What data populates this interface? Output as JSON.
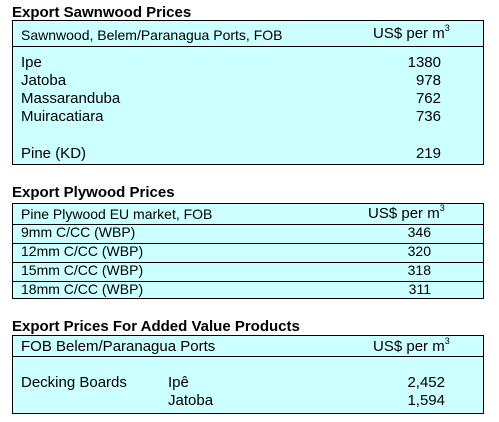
{
  "sawnwood": {
    "title": "Export Sawnwood Prices",
    "header_label": "Sawnwood, Belem/Paranagua Ports, FOB",
    "header_unit": "US$ per m",
    "header_unit_sup": "3",
    "rows": [
      {
        "name": "Ipe",
        "value": "1380"
      },
      {
        "name": "Jatoba",
        "value": "978"
      },
      {
        "name": "Massaranduba",
        "value": "762"
      },
      {
        "name": "Muiracatiara",
        "value": "736"
      },
      {
        "name": "Pine (KD)",
        "value": "219"
      }
    ]
  },
  "plywood": {
    "title": "Export Plywood Prices",
    "header_label": "Pine Plywood EU market, FOB",
    "header_unit": "US$ per m",
    "header_unit_sup": "3",
    "rows": [
      {
        "name": "9mm C/CC (WBP)",
        "value": "346"
      },
      {
        "name": "12mm C/CC (WBP)",
        "value": "320"
      },
      {
        "name": "15mm C/CC (WBP)",
        "value": "318"
      },
      {
        "name": "18mm C/CC (WBP)",
        "value": "311"
      }
    ]
  },
  "added_value": {
    "title": "Export Prices For Added Value Products",
    "header_label": "FOB Belem/Paranagua Ports",
    "header_unit": "US$ per m",
    "header_unit_sup": "3",
    "product": "Decking Boards",
    "rows": [
      {
        "species": "Ipê",
        "value": "2,452"
      },
      {
        "species": "Jatoba",
        "value": "1,594"
      }
    ]
  }
}
